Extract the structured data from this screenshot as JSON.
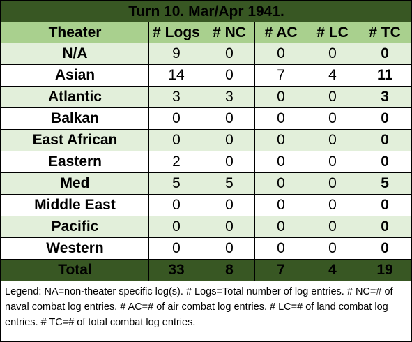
{
  "title": "Turn 10.  Mar/Apr 1941.",
  "headers": {
    "theater": "Theater",
    "logs": "# Logs",
    "nc": "# NC",
    "ac": "# AC",
    "lc": "# LC",
    "tc": "# TC"
  },
  "rows": [
    {
      "theater": "N/A",
      "logs": "9",
      "nc": "0",
      "ac": "0",
      "lc": "0",
      "tc": "0"
    },
    {
      "theater": "Asian",
      "logs": "14",
      "nc": "0",
      "ac": "7",
      "lc": "4",
      "tc": "11"
    },
    {
      "theater": "Atlantic",
      "logs": "3",
      "nc": "3",
      "ac": "0",
      "lc": "0",
      "tc": "3"
    },
    {
      "theater": "Balkan",
      "logs": "0",
      "nc": "0",
      "ac": "0",
      "lc": "0",
      "tc": "0"
    },
    {
      "theater": "East African",
      "logs": "0",
      "nc": "0",
      "ac": "0",
      "lc": "0",
      "tc": "0"
    },
    {
      "theater": "Eastern",
      "logs": "2",
      "nc": "0",
      "ac": "0",
      "lc": "0",
      "tc": "0"
    },
    {
      "theater": "Med",
      "logs": "5",
      "nc": "5",
      "ac": "0",
      "lc": "0",
      "tc": "5"
    },
    {
      "theater": "Middle East",
      "logs": "0",
      "nc": "0",
      "ac": "0",
      "lc": "0",
      "tc": "0"
    },
    {
      "theater": "Pacific",
      "logs": "0",
      "nc": "0",
      "ac": "0",
      "lc": "0",
      "tc": "0"
    },
    {
      "theater": "Western",
      "logs": "0",
      "nc": "0",
      "ac": "0",
      "lc": "0",
      "tc": "0"
    }
  ],
  "total": {
    "label": "Total",
    "logs": "33",
    "nc": "8",
    "ac": "7",
    "lc": "4",
    "tc": "19"
  },
  "legend": "Legend:  NA=non-theater specific log(s).  # Logs=Total number of log entries.  # NC=# of naval combat log entries.  # AC=# of air combat log entries.  # LC=# of land combat log entries.  # TC=# of total combat log entries.",
  "colors": {
    "title_bg": "#385723",
    "header_bg": "#a9d08e",
    "band_bg": "#e2efda",
    "total_bg": "#385723"
  }
}
